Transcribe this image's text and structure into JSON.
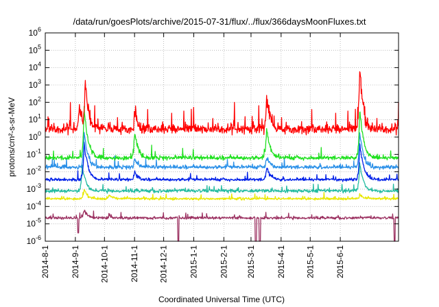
{
  "chart_data": {
    "type": "line",
    "title": "/data/run/goesPlots/archive/2015-07-31/flux/../flux/366daysMoonFluxes.txt",
    "xlabel": "Coordinated Universal Time (UTC)",
    "ylabel": "protons/cm²-s-sr-MeV",
    "y_scale": "log",
    "ylim": [
      1e-06,
      1000000.0
    ],
    "xlim": [
      "2014-08-01",
      "2015-07-31"
    ],
    "grid": true,
    "legend": "none",
    "x_ticks": [
      "2014-8-1",
      "2014-9-1",
      "2014-10-1",
      "2014-11-1",
      "2014-12-1",
      "2015-1-1",
      "2015-2-1",
      "2015-3-1",
      "2015-4-1",
      "2015-5-1",
      "2015-6-1"
    ],
    "y_ticks": [
      {
        "mant": "10",
        "exp": "-6",
        "value": 1e-06
      },
      {
        "mant": "10",
        "exp": "-5",
        "value": 1e-05
      },
      {
        "mant": "10",
        "exp": "-4",
        "value": 0.0001
      },
      {
        "mant": "10",
        "exp": "-3",
        "value": 0.001
      },
      {
        "mant": "10",
        "exp": "-2",
        "value": 0.01
      },
      {
        "mant": "10",
        "exp": "-1",
        "value": 0.1
      },
      {
        "mant": "10",
        "exp": "0",
        "value": 1
      },
      {
        "mant": "10",
        "exp": "1",
        "value": 10
      },
      {
        "mant": "10",
        "exp": "2",
        "value": 100
      },
      {
        "mant": "10",
        "exp": "3",
        "value": 1000
      },
      {
        "mant": "10",
        "exp": "4",
        "value": 10000
      },
      {
        "mant": "10",
        "exp": "5",
        "value": 100000
      },
      {
        "mant": "10",
        "exp": "6",
        "value": 1000000
      }
    ],
    "series": [
      {
        "color": "#9b3060",
        "baseline": 2e-05,
        "spread": 0.09,
        "events": [
          {
            "date": "2014-09-10",
            "value": 6e-05
          },
          {
            "date": "2014-10-06",
            "value": 3e-05
          },
          {
            "date": "2015-06-21",
            "value": 1e-05
          }
        ],
        "dips": [
          {
            "date": "2014-09-04",
            "value": 3e-06
          },
          {
            "date": "2014-12-16",
            "value": 1e-06
          },
          {
            "date": "2015-03-06",
            "value": 1e-06
          },
          {
            "date": "2015-03-10",
            "value": 1e-06
          },
          {
            "date": "2015-07-27",
            "value": 1e-06
          }
        ]
      },
      {
        "color": "#e8e800",
        "baseline": 0.00025,
        "spread": 0.09,
        "events": [
          {
            "date": "2014-09-10",
            "value": 0.001
          },
          {
            "date": "2014-10-06",
            "value": 0.0005
          },
          {
            "date": "2015-06-21",
            "value": 0.0005
          }
        ],
        "dips": []
      },
      {
        "color": "#22bba0",
        "baseline": 0.0007,
        "spread": 0.12,
        "events": [
          {
            "date": "2014-09-08",
            "value": 0.02
          },
          {
            "date": "2015-06-21",
            "value": 0.03
          }
        ],
        "dips": []
      },
      {
        "color": "#0020e8",
        "baseline": 0.003,
        "spread": 0.12,
        "events": [
          {
            "date": "2014-09-10",
            "value": 0.5
          },
          {
            "date": "2014-11-01",
            "value": 0.01
          },
          {
            "date": "2015-03-17",
            "value": 0.02
          },
          {
            "date": "2015-06-21",
            "value": 0.5
          }
        ],
        "dips": []
      },
      {
        "color": "#2a90e8",
        "baseline": 0.015,
        "spread": 0.15,
        "events": [
          {
            "date": "2014-09-10",
            "value": 2
          },
          {
            "date": "2014-11-01",
            "value": 0.05
          },
          {
            "date": "2015-03-17",
            "value": 0.08
          },
          {
            "date": "2015-06-21",
            "value": 2
          }
        ],
        "dips": []
      },
      {
        "color": "#20e020",
        "baseline": 0.05,
        "spread": 0.17,
        "events": [
          {
            "date": "2014-09-10",
            "value": 50
          },
          {
            "date": "2014-11-01",
            "value": 2
          },
          {
            "date": "2015-03-17",
            "value": 3
          },
          {
            "date": "2015-06-21",
            "value": 50
          }
        ],
        "dips": []
      },
      {
        "color": "#ff0000",
        "baseline": 1.5,
        "spread": 0.45,
        "events": [
          {
            "date": "2014-09-11",
            "value": 2000
          },
          {
            "date": "2014-09-05",
            "value": 100
          },
          {
            "date": "2014-11-01",
            "value": 50
          },
          {
            "date": "2015-03-17",
            "value": 300
          },
          {
            "date": "2015-06-21",
            "value": 10000
          }
        ],
        "dips": []
      }
    ]
  }
}
